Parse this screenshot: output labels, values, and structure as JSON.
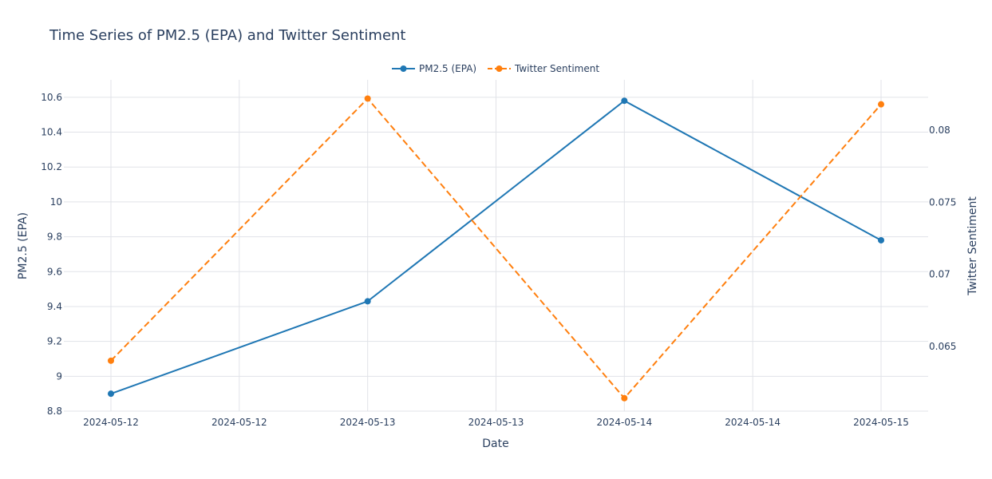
{
  "chart_data": {
    "type": "line",
    "title": "Time Series of PM2.5 (EPA) and Twitter Sentiment",
    "xlabel": "Date",
    "ylabel": "PM2.5 (EPA)",
    "y2label": "Twitter Sentiment",
    "x": [
      "2024-05-12",
      "2024-05-13",
      "2024-05-14",
      "2024-05-15"
    ],
    "x_tick_labels": [
      "2024-05-12",
      "2024-05-12",
      "2024-05-13",
      "2024-05-13",
      "2024-05-14",
      "2024-05-14",
      "2024-05-15"
    ],
    "ylim": [
      8.8,
      10.7
    ],
    "y_ticks": [
      8.8,
      9,
      9.2,
      9.4,
      9.6,
      9.8,
      10,
      10.2,
      10.4,
      10.6
    ],
    "y2lim": [
      0.0605,
      0.0835
    ],
    "y2_ticks": [
      0.065,
      0.07,
      0.075,
      0.08
    ],
    "legend_position": "top-center",
    "grid": true,
    "series": [
      {
        "name": "PM2.5 (EPA)",
        "axis": "left",
        "style": "solid",
        "color": "#1f77b4",
        "values": [
          8.9,
          9.43,
          10.58,
          9.78
        ]
      },
      {
        "name": "Twitter Sentiment",
        "axis": "right",
        "style": "dashed",
        "color": "#ff7f0e",
        "values": [
          0.064,
          0.0822,
          0.0614,
          0.0818
        ]
      }
    ]
  }
}
